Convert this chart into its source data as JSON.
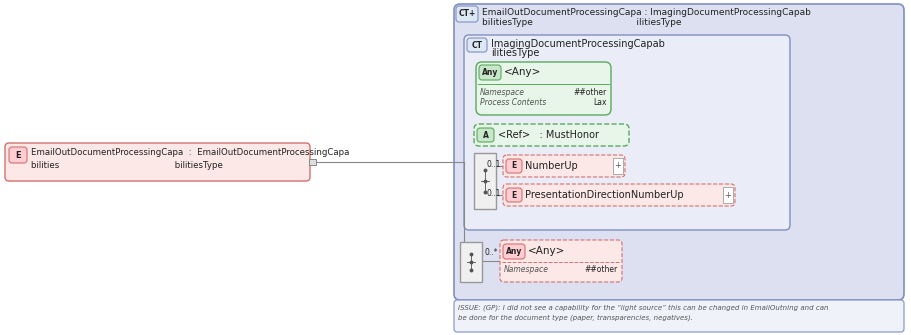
{
  "bg_color": "#ffffff",
  "outer_bg": "#dde0f0",
  "inner_bg": "#e8eaf6",
  "box_pink_fill": "#fce8e6",
  "box_pink_border": "#d47070",
  "box_green_fill": "#e8f5e9",
  "box_green_border": "#5aaa5e",
  "box_green_badge": "#c8e6c9",
  "box_white_fill": "#ffffff",
  "ct_fill": "#dde8f5",
  "ct_border": "#8090c0",
  "text_dark": "#222222",
  "text_gray": "#444444",
  "issue_text_line1": "ISSUE: (GP): I did not see a capability for the “light source” this can be changed in EmailOutning and can",
  "issue_text_line2": "be done for the document type (paper, transparencies, negatives).",
  "main_label_line1": "EmailOutDocumentProcessingCapa  :  EmailOutDocumentProcessingCapa",
  "main_label_line2": "bilities                                          bilitiesType",
  "ct_top_line1": "EmailOutDocumentProcessingCapa : ImagingDocumentProcessingCapab",
  "ct_top_line2": "bilitiesType                                    ilitiesType",
  "ct_inner_line1": "ImagingDocumentProcessingCapab",
  "ct_inner_line2": "ilitiesType",
  "any1_label": "<Any>",
  "any1_ns_val": "##other",
  "any1_pc_val": "Lax",
  "ref_label": "<Ref>   : MustHonor",
  "numberup_label": "NumberUp",
  "presdir_label": "PresentationDirectionNumberUp",
  "any2_label": "<Any>",
  "any2_ns_val": "##other",
  "mul_01a": "0..1",
  "mul_01b": "0..1",
  "mul_0star": "0..*"
}
